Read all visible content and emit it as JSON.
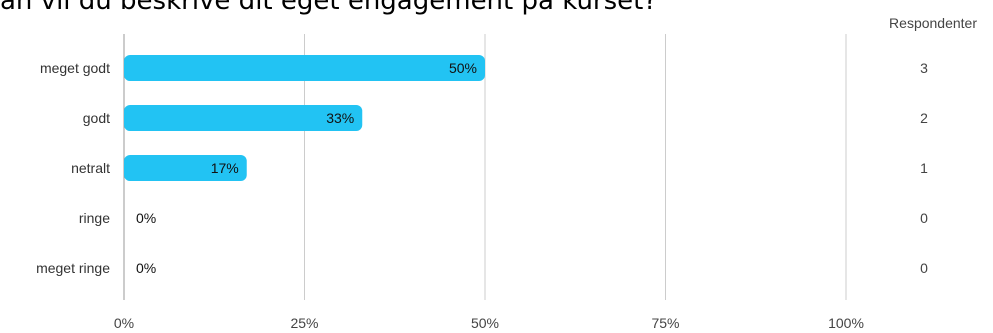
{
  "header": {
    "title": "an vil du beskrive dit eget engagement på kurset?",
    "count_header": "Respondenter"
  },
  "colors": {
    "bar": "#22c3f3",
    "grid": "#cccccc",
    "axis": "#999999"
  },
  "chart_data": {
    "type": "bar",
    "orientation": "horizontal",
    "categories": [
      "meget godt",
      "godt",
      "netralt",
      "ringe",
      "meget ringe"
    ],
    "values": [
      50,
      33,
      17,
      0,
      0
    ],
    "value_labels": [
      "50%",
      "33%",
      "17%",
      "0%",
      "0%"
    ],
    "counts": [
      "3",
      "2",
      "1",
      "0",
      "0"
    ],
    "xlim": [
      0,
      100
    ],
    "xticks": [
      0,
      25,
      50,
      75,
      100
    ],
    "xtick_labels": [
      "0%",
      "25%",
      "50%",
      "75%",
      "100%"
    ],
    "grid": true
  }
}
